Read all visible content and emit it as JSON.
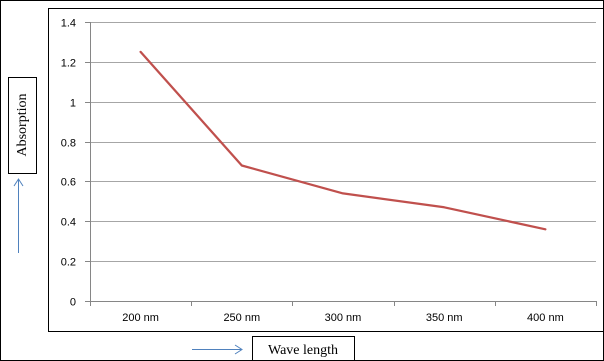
{
  "chart_data": {
    "type": "line",
    "title": "",
    "xlabel": "Wave length",
    "ylabel": "Absorption",
    "categories": [
      "200 nm",
      "250 nm",
      "300 nm",
      "350 nm",
      "400 nm"
    ],
    "series": [
      {
        "values": [
          1.25,
          0.68,
          0.54,
          0.47,
          0.36
        ],
        "color": "#c0504d"
      }
    ],
    "ylim": [
      0,
      1.4
    ],
    "yticks": [
      "0",
      "0.2",
      "0.4",
      "0.6",
      "0.8",
      "1",
      "1.2",
      "1.4"
    ],
    "grid": true,
    "gridColor": "#a6a6a6",
    "arrowColor": "#4f81bd"
  }
}
